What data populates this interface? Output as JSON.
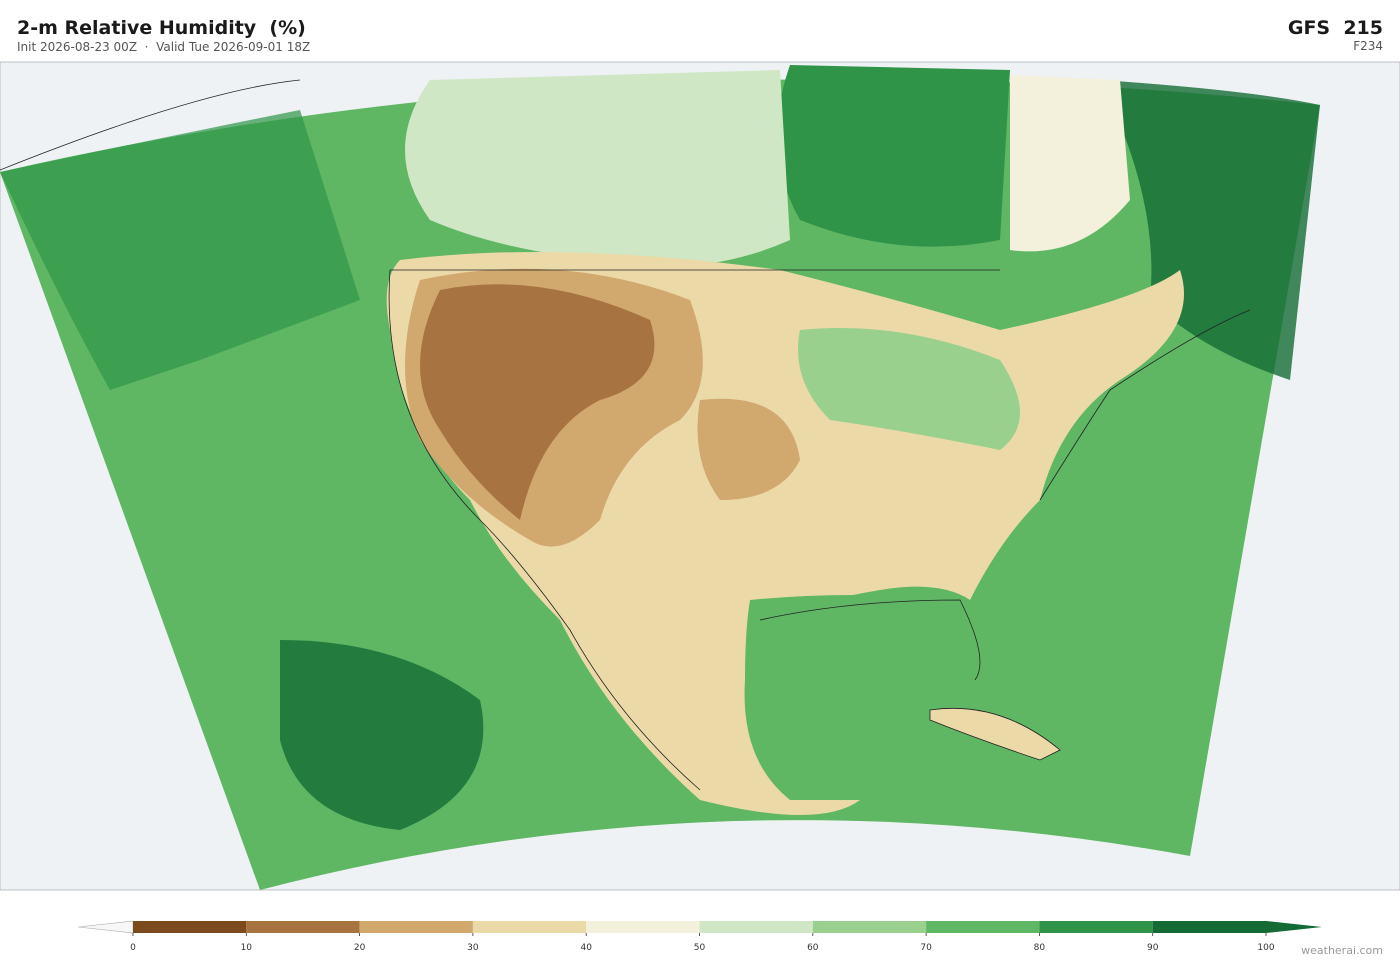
{
  "header": {
    "title": "2-m Relative Humidity  (%)",
    "subtitle": "Init 2026-08-23 00Z  ·  Valid Tue 2026-09-01 18Z",
    "model": "GFS  215",
    "forecast_hour": "F234"
  },
  "colorbar": {
    "ticks": [
      0,
      10,
      20,
      30,
      40,
      50,
      60,
      70,
      80,
      90,
      100
    ],
    "colors": [
      "#7d4a1e",
      "#a77340",
      "#d1a86e",
      "#ecd9a8",
      "#f3f0dc",
      "#cfe7c4",
      "#9ad08e",
      "#5fb764",
      "#2f9447",
      "#146b35"
    ],
    "under_color": "#f7f7f7",
    "over_color": "#146b35"
  },
  "credit": "weatherai.com"
}
